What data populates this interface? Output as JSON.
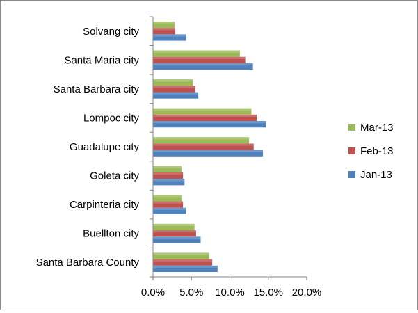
{
  "chart_data": {
    "type": "bar",
    "orientation": "horizontal",
    "title": "",
    "xlabel": "",
    "ylabel": "",
    "xlim": [
      0,
      20
    ],
    "x_ticks": [
      "0.0%",
      "5.0%",
      "10.0%",
      "15.0%",
      "20.0%"
    ],
    "grid": false,
    "legend_position": "right",
    "categories": [
      "Solvang city",
      "Santa Maria city",
      "Santa Barbara  city",
      "Lompoc city",
      "Guadalupe city",
      "Goleta city",
      "Carpinteria city",
      "Buellton city",
      "Santa Barbara  County"
    ],
    "series": [
      {
        "name": "Mar-13",
        "color": "#9bbb59",
        "values": [
          2.8,
          11.3,
          5.2,
          12.8,
          12.5,
          3.7,
          3.7,
          5.4,
          7.3
        ]
      },
      {
        "name": "Feb-13",
        "color": "#c0504d",
        "values": [
          2.9,
          12.0,
          5.5,
          13.5,
          13.1,
          3.9,
          3.9,
          5.6,
          7.7
        ]
      },
      {
        "name": "Jan-13",
        "color": "#4f81bd",
        "values": [
          4.3,
          13.0,
          5.9,
          14.7,
          14.3,
          4.1,
          4.3,
          6.2,
          8.4
        ]
      }
    ]
  }
}
